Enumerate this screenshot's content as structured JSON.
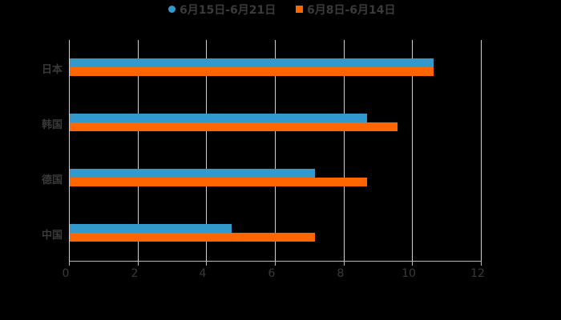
{
  "chart_data": {
    "type": "bar",
    "orientation": "horizontal",
    "title": "",
    "xlabel": "",
    "ylabel": "",
    "categories": [
      "日本",
      "韩国",
      "德国",
      "中国"
    ],
    "series": [
      {
        "name": "6月15日-6月21日",
        "color": "#3399cc",
        "marker": "circle",
        "values": [
          10.62,
          8.68,
          7.16,
          4.74
        ]
      },
      {
        "name": "6月8日-6月14日",
        "color": "#ff6600",
        "marker": "square",
        "values": [
          10.62,
          9.57,
          8.68,
          7.16
        ]
      }
    ],
    "xlim": [
      0,
      12
    ],
    "x_ticks": [
      "0",
      "2",
      "4",
      "6",
      "8",
      "10",
      "12"
    ],
    "grid": "vertical",
    "legend_position": "top"
  }
}
